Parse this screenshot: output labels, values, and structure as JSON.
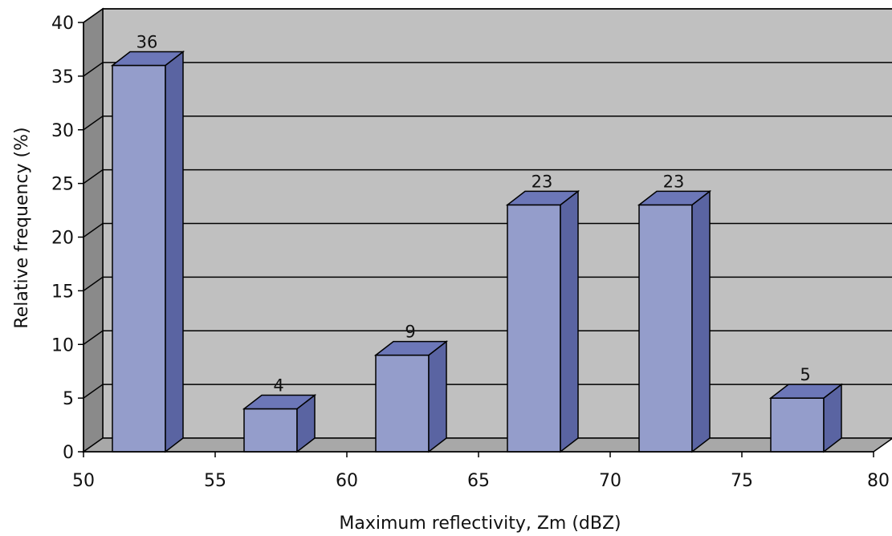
{
  "chart_data": {
    "type": "bar",
    "style": "3d-column",
    "title": "",
    "xlabel": "Maximum reflectivity, Zm (dBZ)",
    "ylabel": "Relative frequency (%)",
    "categories": [
      "50-55",
      "55-60",
      "60-65",
      "65-70",
      "70-75",
      "75-80"
    ],
    "values": [
      36,
      4,
      9,
      23,
      23,
      5
    ],
    "data_labels": [
      "36",
      "4",
      "9",
      "23",
      "23",
      "5"
    ],
    "xlim": [
      50,
      80
    ],
    "ylim": [
      0,
      40
    ],
    "xticks": [
      "50",
      "55",
      "60",
      "65",
      "70",
      "75",
      "80"
    ],
    "yticks": [
      "0",
      "5",
      "10",
      "15",
      "20",
      "25",
      "30",
      "35",
      "40"
    ],
    "grid": true,
    "legend": "none",
    "colors": {
      "bar_front": "#949dcb",
      "bar_side": "#5a64a2",
      "bar_top": "#6c77b8",
      "back_wall": "#c0c0c0",
      "side_wall": "#8a8a8a",
      "floor": "#a8a8a8"
    }
  }
}
